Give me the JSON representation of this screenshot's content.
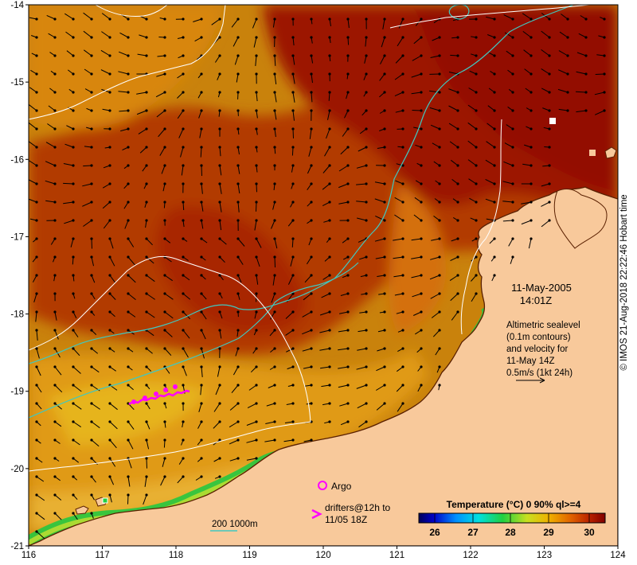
{
  "map": {
    "date": "11-May-2005",
    "time": "14:01Z",
    "altimetry_lines": [
      "Altimetric sealevel",
      "(0.1m contours)",
      "and velocity for",
      "11-May 14Z",
      "0.5m/s (1kt 24h)"
    ],
    "legend_argo": "Argo",
    "legend_drifters_line1": "drifters@12h to",
    "legend_drifters_line2": "11/05 18Z",
    "bathymetry_label": "200  1000m",
    "colorbar_title": "Temperature (°C) 0 90% ql>=4",
    "colorbar_ticks": [
      "26",
      "27",
      "28",
      "29",
      "30"
    ],
    "x_ticks": [
      "116",
      "117",
      "118",
      "119",
      "120",
      "121",
      "122",
      "123",
      "124"
    ],
    "y_ticks": [
      "-14",
      "-15",
      "-16",
      "-17",
      "-18",
      "-19",
      "-20",
      "-21"
    ],
    "credit": "© IMOS 21-Aug-2018 22:22:46 Hobart time",
    "colors": {
      "land": "#f8c99b",
      "warm_sea": "#b22b00",
      "hot_sea": "#960b00",
      "mid_sea": "#d6680a",
      "cool_sea": "#e0a020",
      "argo": "#ff00ff",
      "bathymetry_200m": "#40c8c0",
      "bathymetry_1000m": "#ffffff"
    }
  }
}
